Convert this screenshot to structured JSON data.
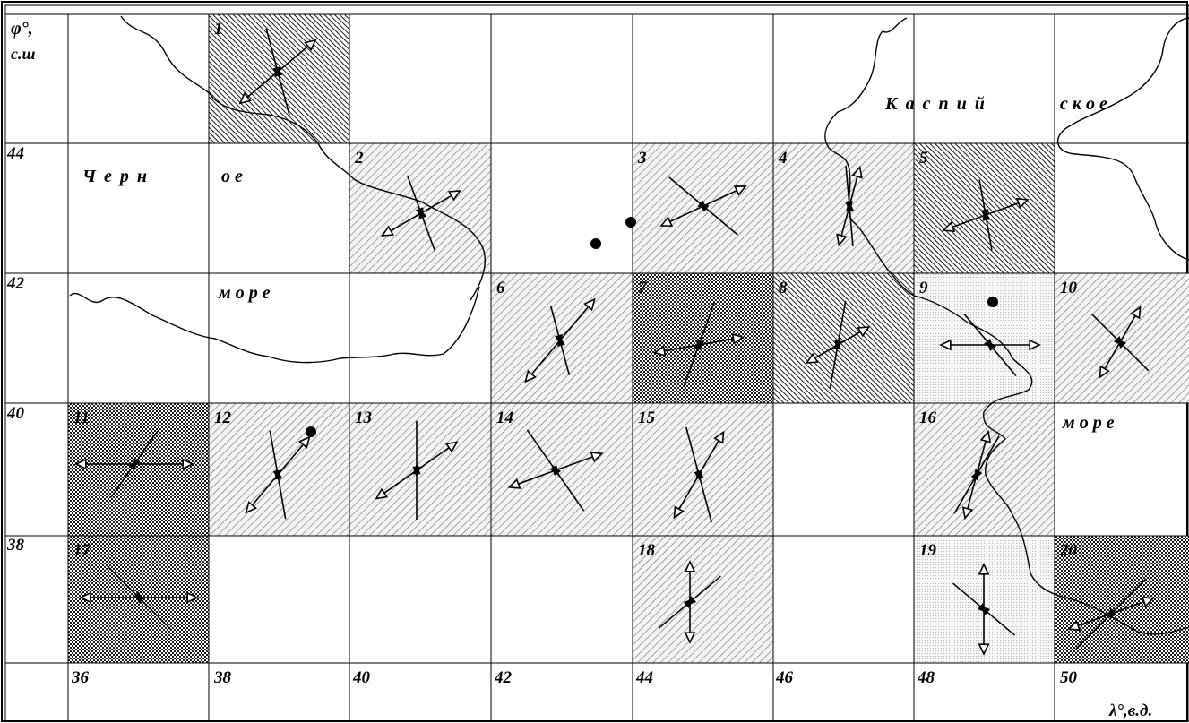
{
  "map": {
    "lat_axis_label_line1": "φ°,",
    "lat_axis_label_line2": "с.ш",
    "lon_axis_label": "λ°,в.д.",
    "lat_ticks": [
      "44",
      "42",
      "40",
      "38"
    ],
    "lon_ticks": [
      "36",
      "38",
      "40",
      "42",
      "44",
      "46",
      "48",
      "50"
    ],
    "sea_labels": {
      "black_sea_1": "Ч е р н",
      "black_sea_2": "о е",
      "black_sea_3": "м о р е",
      "caspian_1": "К а с п и й",
      "caspian_2": "с к о е",
      "caspian_3": "м о р е"
    },
    "shading_legend_colors": {
      "light_dots": "#d4d4d4",
      "light_hatch": "#8a8a8a",
      "dense_hatch": "#3a3a3a",
      "checker": "#4a4a4a"
    },
    "cells": [
      {
        "num": "1",
        "shade": "dense_hatch",
        "row": 0,
        "col": 1
      },
      {
        "num": "2",
        "shade": "light_hatch",
        "row": 1,
        "col": 2
      },
      {
        "num": "3",
        "shade": "light_hatch",
        "row": 1,
        "col": 4
      },
      {
        "num": "4",
        "shade": "light_hatch",
        "row": 1,
        "col": 5
      },
      {
        "num": "5",
        "shade": "dense_hatch",
        "row": 1,
        "col": 6
      },
      {
        "num": "6",
        "shade": "light_hatch",
        "row": 2,
        "col": 3
      },
      {
        "num": "7",
        "shade": "checker",
        "row": 2,
        "col": 4
      },
      {
        "num": "8",
        "shade": "dense_hatch",
        "row": 2,
        "col": 5
      },
      {
        "num": "9",
        "shade": "light_dots",
        "row": 2,
        "col": 6
      },
      {
        "num": "10",
        "shade": "light_hatch",
        "row": 2,
        "col": 7
      },
      {
        "num": "11",
        "shade": "checker",
        "row": 3,
        "col": 0
      },
      {
        "num": "12",
        "shade": "light_hatch",
        "row": 3,
        "col": 1
      },
      {
        "num": "13",
        "shade": "light_hatch",
        "row": 3,
        "col": 2
      },
      {
        "num": "14",
        "shade": "light_hatch",
        "row": 3,
        "col": 3
      },
      {
        "num": "15",
        "shade": "light_hatch",
        "row": 3,
        "col": 4
      },
      {
        "num": "16",
        "shade": "light_hatch",
        "row": 3,
        "col": 6
      },
      {
        "num": "17",
        "shade": "checker",
        "row": 4,
        "col": 0
      },
      {
        "num": "18",
        "shade": "light_hatch",
        "row": 4,
        "col": 4
      },
      {
        "num": "19",
        "shade": "light_dots",
        "row": 4,
        "col": 6
      },
      {
        "num": "20",
        "shade": "checker",
        "row": 4,
        "col": 7
      }
    ]
  }
}
